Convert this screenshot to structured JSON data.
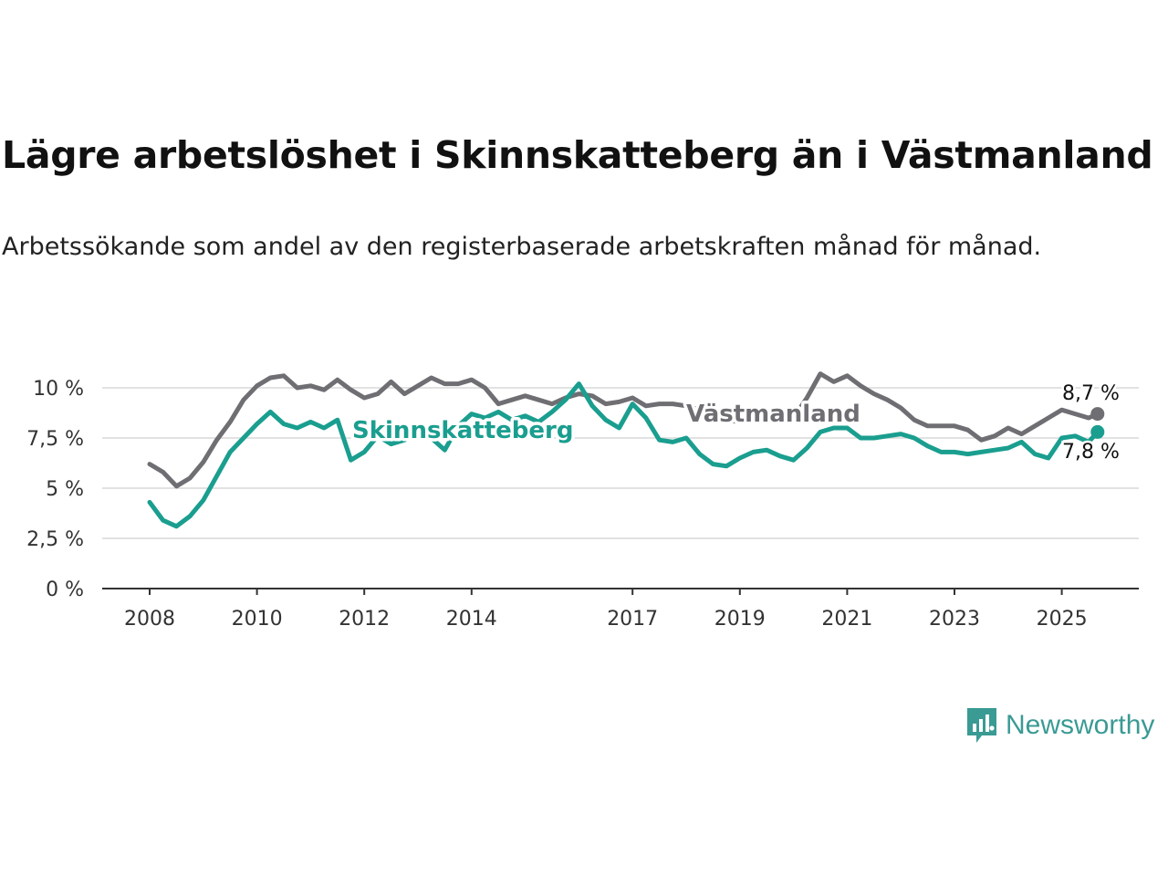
{
  "title": "Lägre arbetslöshet i Skinnskatteberg än i Västmanland",
  "subtitle": "Arbetssökande som andel av den registerbaserade arbetskraften månad för månad.",
  "brand": {
    "name": "Newsworthy",
    "color": "#3a9a94",
    "icon": "newsworthy-logo-icon"
  },
  "chart_data": {
    "type": "line",
    "x_ticks": [
      "2008",
      "2010",
      "2012",
      "2014",
      "2017",
      "2019",
      "2021",
      "2023",
      "2025"
    ],
    "y_ticks": [
      "0 %",
      "2,5 %",
      "5 %",
      "7,5 %",
      "10 %"
    ],
    "ylim": [
      0,
      10.5
    ],
    "xlim": [
      "2008-01",
      "2025-12"
    ],
    "grid": true,
    "series": [
      {
        "name": "Västmanland",
        "color": "#6e6e73",
        "end_label": "8,7 %",
        "points": [
          [
            "2008-01",
            6.2
          ],
          [
            "2008-04",
            5.8
          ],
          [
            "2008-07",
            5.1
          ],
          [
            "2008-10",
            5.5
          ],
          [
            "2009-01",
            6.3
          ],
          [
            "2009-04",
            7.4
          ],
          [
            "2009-07",
            8.3
          ],
          [
            "2009-10",
            9.4
          ],
          [
            "2010-01",
            10.1
          ],
          [
            "2010-04",
            10.5
          ],
          [
            "2010-07",
            10.6
          ],
          [
            "2010-10",
            10.0
          ],
          [
            "2011-01",
            10.1
          ],
          [
            "2011-04",
            9.9
          ],
          [
            "2011-07",
            10.4
          ],
          [
            "2011-10",
            9.9
          ],
          [
            "2012-01",
            9.5
          ],
          [
            "2012-04",
            9.7
          ],
          [
            "2012-07",
            10.3
          ],
          [
            "2012-10",
            9.7
          ],
          [
            "2013-01",
            10.1
          ],
          [
            "2013-04",
            10.5
          ],
          [
            "2013-07",
            10.2
          ],
          [
            "2013-10",
            10.2
          ],
          [
            "2014-01",
            10.4
          ],
          [
            "2014-04",
            10.0
          ],
          [
            "2014-07",
            9.2
          ],
          [
            "2014-10",
            9.4
          ],
          [
            "2015-01",
            9.6
          ],
          [
            "2015-04",
            9.4
          ],
          [
            "2015-07",
            9.2
          ],
          [
            "2015-10",
            9.5
          ],
          [
            "2016-01",
            9.7
          ],
          [
            "2016-04",
            9.6
          ],
          [
            "2016-07",
            9.2
          ],
          [
            "2016-10",
            9.3
          ],
          [
            "2017-01",
            9.5
          ],
          [
            "2017-04",
            9.1
          ],
          [
            "2017-07",
            9.2
          ],
          [
            "2017-10",
            9.2
          ],
          [
            "2018-01",
            9.1
          ],
          [
            "2018-04",
            8.9
          ],
          [
            "2018-07",
            8.6
          ],
          [
            "2018-10",
            8.4
          ],
          [
            "2019-01",
            8.3
          ],
          [
            "2019-04",
            8.4
          ],
          [
            "2019-07",
            8.6
          ],
          [
            "2019-10",
            8.4
          ],
          [
            "2020-01",
            8.5
          ],
          [
            "2020-04",
            9.5
          ],
          [
            "2020-07",
            10.7
          ],
          [
            "2020-10",
            10.3
          ],
          [
            "2021-01",
            10.6
          ],
          [
            "2021-04",
            10.1
          ],
          [
            "2021-07",
            9.7
          ],
          [
            "2021-10",
            9.4
          ],
          [
            "2022-01",
            9.0
          ],
          [
            "2022-04",
            8.4
          ],
          [
            "2022-07",
            8.1
          ],
          [
            "2022-10",
            8.1
          ],
          [
            "2023-01",
            8.1
          ],
          [
            "2023-04",
            7.9
          ],
          [
            "2023-07",
            7.4
          ],
          [
            "2023-10",
            7.6
          ],
          [
            "2024-01",
            8.0
          ],
          [
            "2024-04",
            7.7
          ],
          [
            "2024-07",
            8.1
          ],
          [
            "2024-10",
            8.5
          ],
          [
            "2025-01",
            8.9
          ],
          [
            "2025-04",
            8.7
          ],
          [
            "2025-07",
            8.5
          ],
          [
            "2025-09",
            8.7
          ]
        ]
      },
      {
        "name": "Skinnskatteberg",
        "color": "#1a9e8f",
        "end_label": "7,8 %",
        "points": [
          [
            "2008-01",
            4.3
          ],
          [
            "2008-04",
            3.4
          ],
          [
            "2008-07",
            3.1
          ],
          [
            "2008-10",
            3.6
          ],
          [
            "2009-01",
            4.4
          ],
          [
            "2009-04",
            5.6
          ],
          [
            "2009-07",
            6.8
          ],
          [
            "2009-10",
            7.5
          ],
          [
            "2010-01",
            8.2
          ],
          [
            "2010-04",
            8.8
          ],
          [
            "2010-07",
            8.2
          ],
          [
            "2010-10",
            8.0
          ],
          [
            "2011-01",
            8.3
          ],
          [
            "2011-04",
            8.0
          ],
          [
            "2011-07",
            8.4
          ],
          [
            "2011-10",
            6.4
          ],
          [
            "2012-01",
            6.8
          ],
          [
            "2012-04",
            7.6
          ],
          [
            "2012-07",
            7.2
          ],
          [
            "2012-10",
            7.4
          ],
          [
            "2013-01",
            7.8
          ],
          [
            "2013-04",
            7.5
          ],
          [
            "2013-07",
            6.9
          ],
          [
            "2013-10",
            8.1
          ],
          [
            "2014-01",
            8.7
          ],
          [
            "2014-04",
            8.5
          ],
          [
            "2014-07",
            8.8
          ],
          [
            "2014-10",
            8.4
          ],
          [
            "2015-01",
            8.6
          ],
          [
            "2015-04",
            8.3
          ],
          [
            "2015-07",
            8.8
          ],
          [
            "2015-10",
            9.4
          ],
          [
            "2016-01",
            10.2
          ],
          [
            "2016-04",
            9.1
          ],
          [
            "2016-07",
            8.4
          ],
          [
            "2016-10",
            8.0
          ],
          [
            "2017-01",
            9.2
          ],
          [
            "2017-04",
            8.5
          ],
          [
            "2017-07",
            7.4
          ],
          [
            "2017-10",
            7.3
          ],
          [
            "2018-01",
            7.5
          ],
          [
            "2018-04",
            6.7
          ],
          [
            "2018-07",
            6.2
          ],
          [
            "2018-10",
            6.1
          ],
          [
            "2019-01",
            6.5
          ],
          [
            "2019-04",
            6.8
          ],
          [
            "2019-07",
            6.9
          ],
          [
            "2019-10",
            6.6
          ],
          [
            "2020-01",
            6.4
          ],
          [
            "2020-04",
            7.0
          ],
          [
            "2020-07",
            7.8
          ],
          [
            "2020-10",
            8.0
          ],
          [
            "2021-01",
            8.0
          ],
          [
            "2021-04",
            7.5
          ],
          [
            "2021-07",
            7.5
          ],
          [
            "2021-10",
            7.6
          ],
          [
            "2022-01",
            7.7
          ],
          [
            "2022-04",
            7.5
          ],
          [
            "2022-07",
            7.1
          ],
          [
            "2022-10",
            6.8
          ],
          [
            "2023-01",
            6.8
          ],
          [
            "2023-04",
            6.7
          ],
          [
            "2023-07",
            6.8
          ],
          [
            "2023-10",
            6.9
          ],
          [
            "2024-01",
            7.0
          ],
          [
            "2024-04",
            7.3
          ],
          [
            "2024-07",
            6.7
          ],
          [
            "2024-10",
            6.5
          ],
          [
            "2025-01",
            7.5
          ],
          [
            "2025-04",
            7.6
          ],
          [
            "2025-07",
            7.3
          ],
          [
            "2025-09",
            7.8
          ]
        ]
      }
    ]
  }
}
